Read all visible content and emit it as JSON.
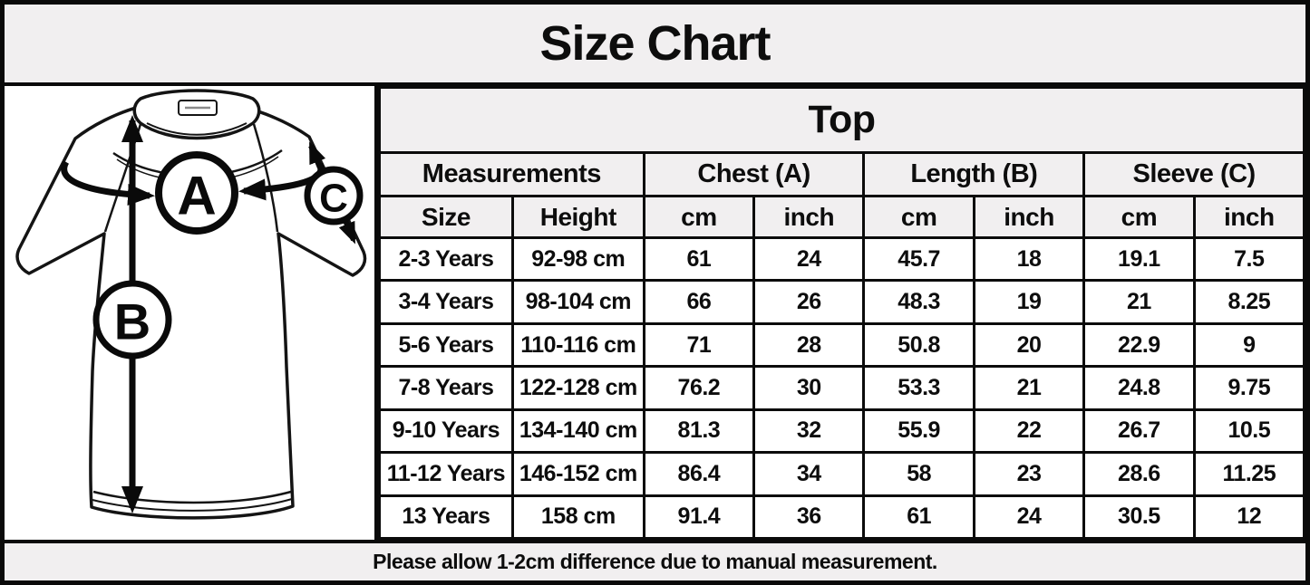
{
  "title": "Size Chart",
  "diagram": {
    "marker_a": "A",
    "marker_b": "B",
    "marker_c": "C"
  },
  "table": {
    "title": "Top",
    "group_headers": [
      "Measurements",
      "Chest (A)",
      "Length (B)",
      "Sleeve (C)"
    ],
    "sub_headers": [
      "Size",
      "Height",
      "cm",
      "inch",
      "cm",
      "inch",
      "cm",
      "inch"
    ],
    "rows": [
      [
        "2-3 Years",
        "92-98 cm",
        "61",
        "24",
        "45.7",
        "18",
        "19.1",
        "7.5"
      ],
      [
        "3-4 Years",
        "98-104 cm",
        "66",
        "26",
        "48.3",
        "19",
        "21",
        "8.25"
      ],
      [
        "5-6 Years",
        "110-116 cm",
        "71",
        "28",
        "50.8",
        "20",
        "22.9",
        "9"
      ],
      [
        "7-8 Years",
        "122-128 cm",
        "76.2",
        "30",
        "53.3",
        "21",
        "24.8",
        "9.75"
      ],
      [
        "9-10 Years",
        "134-140 cm",
        "81.3",
        "32",
        "55.9",
        "22",
        "26.7",
        "10.5"
      ],
      [
        "11-12 Years",
        "146-152 cm",
        "86.4",
        "34",
        "58",
        "23",
        "28.6",
        "11.25"
      ],
      [
        "13 Years",
        "158 cm",
        "91.4",
        "36",
        "61",
        "24",
        "30.5",
        "12"
      ]
    ]
  },
  "footer_note": "Please allow 1-2cm difference due to manual measurement.",
  "colors": {
    "background": "#f1eff0",
    "border": "#0a0a0a",
    "cell_background": "#ffffff",
    "text": "#0d0d0d"
  }
}
